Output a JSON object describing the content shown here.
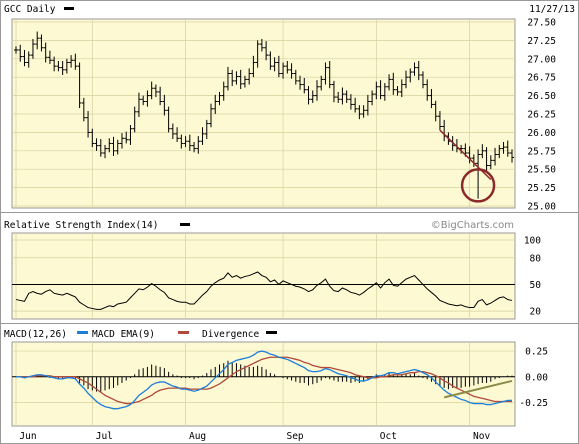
{
  "chart_data": [
    {
      "type": "ohlc",
      "title": "GCC Daily",
      "date_label": "11/27/13",
      "watermark": "©BigCharts.com",
      "yticks": [
        "27.50",
        "27.25",
        "27.00",
        "26.75",
        "26.50",
        "26.25",
        "26.00",
        "25.75",
        "25.50",
        "25.25",
        "25.00"
      ],
      "ylim": [
        25.0,
        27.5
      ],
      "closes": [
        27.12,
        27.03,
        26.95,
        27.05,
        27.2,
        27.28,
        27.15,
        27.02,
        26.98,
        26.9,
        26.88,
        26.85,
        26.95,
        26.98,
        26.9,
        26.4,
        26.2,
        26.0,
        25.85,
        25.82,
        25.72,
        25.78,
        25.85,
        25.75,
        25.85,
        25.92,
        25.9,
        26.05,
        26.28,
        26.45,
        26.42,
        26.5,
        26.6,
        26.55,
        26.42,
        26.3,
        26.05,
        25.98,
        25.92,
        25.85,
        25.88,
        25.82,
        25.78,
        25.88,
        25.98,
        26.12,
        26.32,
        26.42,
        26.5,
        26.62,
        26.8,
        26.7,
        26.76,
        26.66,
        26.72,
        26.8,
        26.95,
        27.2,
        27.15,
        27.05,
        26.9,
        26.95,
        26.8,
        26.9,
        26.85,
        26.8,
        26.7,
        26.65,
        26.58,
        26.45,
        26.5,
        26.62,
        26.72,
        26.88,
        26.65,
        26.48,
        26.45,
        26.52,
        26.45,
        26.38,
        26.32,
        26.25,
        26.3,
        26.42,
        26.52,
        26.62,
        26.5,
        26.62,
        26.72,
        26.58,
        26.55,
        26.65,
        26.75,
        26.82,
        26.88,
        26.78,
        26.65,
        26.5,
        26.38,
        26.22,
        26.08,
        25.95,
        25.88,
        25.82,
        25.78,
        25.78,
        25.72,
        25.65,
        25.58,
        25.7,
        25.75,
        25.55,
        25.62,
        25.7,
        25.78,
        25.8,
        25.72,
        25.66
      ],
      "annotations": [
        "trend-line",
        "circle"
      ],
      "circle_at": {
        "index": 109,
        "price": 25.28
      }
    },
    {
      "type": "line",
      "title": "Relative Strength Index(14)",
      "yticks": [
        "100",
        "80",
        "50",
        "20"
      ],
      "ylim": [
        10,
        100
      ],
      "reference_line": 50,
      "values": [
        33,
        32,
        31,
        40,
        42,
        40,
        39,
        42,
        44,
        40,
        39,
        38,
        40,
        38,
        36,
        30,
        27,
        24,
        23,
        22,
        22,
        24,
        26,
        25,
        28,
        29,
        30,
        35,
        40,
        45,
        44,
        47,
        51,
        48,
        44,
        41,
        35,
        33,
        31,
        30,
        30,
        28,
        28,
        33,
        38,
        42,
        48,
        52,
        55,
        57,
        63,
        58,
        60,
        57,
        59,
        60,
        62,
        64,
        60,
        58,
        53,
        55,
        50,
        54,
        52,
        50,
        48,
        47,
        45,
        42,
        44,
        49,
        52,
        56,
        48,
        43,
        42,
        46,
        44,
        41,
        40,
        38,
        41,
        45,
        48,
        52,
        46,
        52,
        56,
        49,
        48,
        52,
        56,
        58,
        60,
        55,
        50,
        45,
        41,
        37,
        32,
        30,
        28,
        27,
        26,
        27,
        25,
        24,
        24,
        31,
        33,
        27,
        29,
        32,
        35,
        36,
        33,
        32
      ]
    },
    {
      "type": "line",
      "title": "MACD(12,26)",
      "legend": [
        "MACD EMA(9)",
        "Divergence"
      ],
      "colors": {
        "macd": "#1e7fd8",
        "ema": "#b24a3a",
        "divergence": "#000000"
      },
      "yticks": [
        "0.25",
        "0.00",
        "-0.25"
      ],
      "ylim": [
        -0.42,
        0.28
      ],
      "macd": [
        0.0,
        0.0,
        -0.01,
        0.0,
        0.01,
        0.02,
        0.02,
        0.01,
        0.0,
        -0.01,
        -0.02,
        -0.02,
        -0.01,
        -0.01,
        -0.02,
        -0.07,
        -0.11,
        -0.16,
        -0.2,
        -0.24,
        -0.27,
        -0.29,
        -0.3,
        -0.31,
        -0.31,
        -0.3,
        -0.29,
        -0.27,
        -0.23,
        -0.18,
        -0.15,
        -0.12,
        -0.08,
        -0.06,
        -0.05,
        -0.05,
        -0.07,
        -0.09,
        -0.1,
        -0.12,
        -0.12,
        -0.13,
        -0.14,
        -0.13,
        -0.11,
        -0.09,
        -0.05,
        -0.01,
        0.03,
        0.07,
        0.12,
        0.14,
        0.16,
        0.17,
        0.18,
        0.19,
        0.21,
        0.24,
        0.25,
        0.24,
        0.22,
        0.21,
        0.19,
        0.18,
        0.17,
        0.15,
        0.13,
        0.11,
        0.09,
        0.06,
        0.05,
        0.05,
        0.06,
        0.08,
        0.07,
        0.05,
        0.03,
        0.02,
        0.01,
        -0.01,
        -0.02,
        -0.04,
        -0.04,
        -0.03,
        -0.01,
        0.01,
        0.01,
        0.02,
        0.04,
        0.04,
        0.03,
        0.04,
        0.05,
        0.06,
        0.07,
        0.06,
        0.04,
        0.02,
        -0.01,
        -0.05,
        -0.09,
        -0.13,
        -0.16,
        -0.18,
        -0.2,
        -0.22,
        -0.23,
        -0.25,
        -0.26,
        -0.26,
        -0.26,
        -0.27,
        -0.27,
        -0.26,
        -0.25,
        -0.24,
        -0.23,
        -0.23
      ],
      "ema": [
        0.0,
        0.0,
        0.0,
        0.0,
        0.0,
        0.01,
        0.01,
        0.01,
        0.01,
        0.0,
        0.0,
        0.0,
        0.0,
        0.0,
        0.0,
        -0.02,
        -0.04,
        -0.06,
        -0.09,
        -0.12,
        -0.15,
        -0.18,
        -0.2,
        -0.22,
        -0.24,
        -0.25,
        -0.26,
        -0.26,
        -0.25,
        -0.24,
        -0.22,
        -0.2,
        -0.18,
        -0.15,
        -0.13,
        -0.12,
        -0.11,
        -0.11,
        -0.11,
        -0.11,
        -0.11,
        -0.12,
        -0.12,
        -0.12,
        -0.12,
        -0.12,
        -0.11,
        -0.09,
        -0.07,
        -0.04,
        -0.01,
        0.02,
        0.05,
        0.07,
        0.09,
        0.11,
        0.13,
        0.15,
        0.17,
        0.18,
        0.19,
        0.19,
        0.19,
        0.19,
        0.19,
        0.18,
        0.17,
        0.16,
        0.14,
        0.13,
        0.11,
        0.1,
        0.09,
        0.09,
        0.09,
        0.08,
        0.07,
        0.06,
        0.05,
        0.04,
        0.02,
        0.01,
        0.0,
        -0.01,
        -0.01,
        -0.01,
        0.0,
        0.0,
        0.01,
        0.02,
        0.02,
        0.02,
        0.03,
        0.04,
        0.04,
        0.05,
        0.05,
        0.04,
        0.03,
        0.01,
        -0.01,
        -0.04,
        -0.06,
        -0.09,
        -0.11,
        -0.13,
        -0.15,
        -0.17,
        -0.19,
        -0.2,
        -0.21,
        -0.22,
        -0.23,
        -0.24,
        -0.24,
        -0.24,
        -0.24,
        -0.24
      ]
    }
  ],
  "xaxis": {
    "labels": [
      "Jun",
      "Jul",
      "Aug",
      "Sep",
      "Oct",
      "Nov"
    ],
    "indices": [
      0,
      18,
      40,
      63,
      85,
      107
    ]
  }
}
